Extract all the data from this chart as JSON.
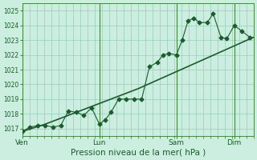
{
  "title": "Pression niveau de la mer( hPa )",
  "background_color": "#cceee0",
  "plot_bg_color": "#cceee0",
  "grid_color": "#99ccbb",
  "line_color": "#1a5c2a",
  "spine_color": "#448844",
  "ylim": [
    1016.5,
    1025.5
  ],
  "yticks": [
    1017,
    1018,
    1019,
    1020,
    1021,
    1022,
    1023,
    1024,
    1025
  ],
  "xlim": [
    0.0,
    8.0
  ],
  "day_labels": [
    "Ven",
    "Lun",
    "Sam",
    "Dim"
  ],
  "day_positions": [
    0.0,
    2.67,
    5.33,
    7.33
  ],
  "series1_x": [
    0.0,
    0.27,
    0.53,
    0.8,
    1.07,
    1.33,
    1.6,
    1.87,
    2.13,
    2.4,
    2.67,
    2.87,
    3.07,
    3.33,
    3.6,
    3.87,
    4.13,
    4.4,
    4.67,
    4.87,
    5.07,
    5.33,
    5.53,
    5.73,
    5.93,
    6.13,
    6.4,
    6.6,
    6.87,
    7.07,
    7.33,
    7.6,
    7.87
  ],
  "series1_y": [
    1016.8,
    1017.1,
    1017.2,
    1017.2,
    1017.1,
    1017.2,
    1018.2,
    1018.1,
    1017.9,
    1018.4,
    1017.3,
    1017.6,
    1018.1,
    1019.0,
    1019.0,
    1019.0,
    1019.0,
    1021.2,
    1021.5,
    1022.0,
    1022.1,
    1022.0,
    1023.0,
    1024.3,
    1024.5,
    1024.2,
    1024.2,
    1024.8,
    1023.2,
    1023.1,
    1024.0,
    1023.6,
    1023.2
  ],
  "series2_x": [
    0.0,
    0.8,
    1.6,
    2.4,
    3.2,
    4.0,
    4.8,
    5.6,
    6.4,
    7.2,
    8.0
  ],
  "series2_y": [
    1016.8,
    1017.3,
    1017.9,
    1018.5,
    1019.1,
    1019.7,
    1020.4,
    1021.1,
    1021.8,
    1022.5,
    1023.2
  ],
  "marker": "D",
  "marker_size": 2.5,
  "linewidth1": 0.8,
  "linewidth2": 1.2,
  "xlabel_fontsize": 7.5,
  "ytick_fontsize": 5.5,
  "xtick_fontsize": 6.5
}
